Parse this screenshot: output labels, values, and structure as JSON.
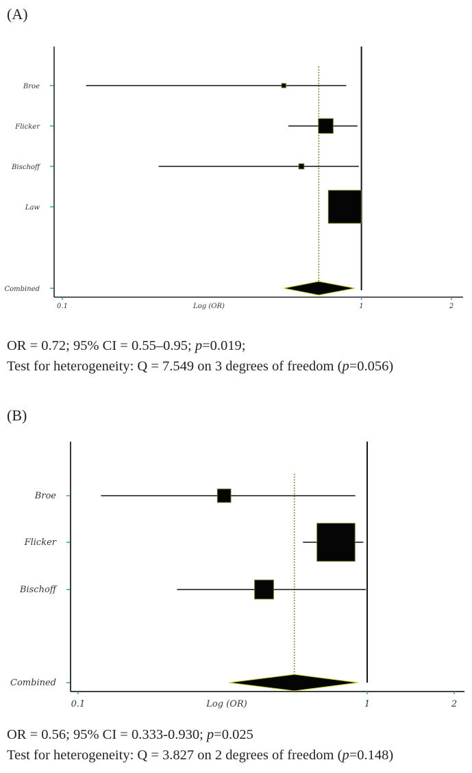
{
  "panels": [
    {
      "label": "(A)",
      "xlabel": "Log (OR)",
      "ticks": [
        {
          "value": 0.1,
          "label": "0.1"
        },
        {
          "value": 1,
          "label": "1"
        },
        {
          "value": 2,
          "label": "2"
        }
      ],
      "stats_line1_pre": "OR = 0.72; 95% CI = 0.55–0.95; ",
      "stats_line1_p": "p",
      "stats_line1_post": "=0.019;",
      "stats_line2_pre": "Test for heterogeneity: Q = 7.549 on 3 degrees of freedom (",
      "stats_line2_p": "p",
      "stats_line2_post": "=0.056)"
    },
    {
      "label": "(B)",
      "xlabel": "Log (OR)",
      "ticks": [
        {
          "value": 0.1,
          "label": "0.1"
        },
        {
          "value": 1,
          "label": "1"
        },
        {
          "value": 2,
          "label": "2"
        }
      ],
      "stats_line1_pre": "OR = 0.56; 95% CI = 0.333-0.930; ",
      "stats_line1_p": "p",
      "stats_line1_post": "=0.025",
      "stats_line2_pre": "Test for heterogeneity: Q = 3.827 on 2 degrees of freedom (",
      "stats_line2_p": "p",
      "stats_line2_post": "=0.148)"
    }
  ],
  "chart_data": [
    {
      "type": "forest",
      "xlabel": "Log (OR)",
      "xscale": "log",
      "xlim": [
        0.1,
        2
      ],
      "null_line": 1,
      "pooled_line": 0.72,
      "studies": [
        {
          "name": "Broe",
          "or": 0.55,
          "lo": 0.12,
          "hi": 0.89,
          "weight": 0.01
        },
        {
          "name": "Flicker",
          "or": 0.76,
          "lo": 0.57,
          "hi": 0.97,
          "weight": 0.12
        },
        {
          "name": "Bischoff",
          "or": 0.63,
          "lo": 0.21,
          "hi": 0.98,
          "weight": 0.015
        },
        {
          "name": "Law",
          "or": 0.88,
          "lo": 0.8,
          "hi": 0.99,
          "weight": 0.6
        }
      ],
      "combined": {
        "name": "Combined",
        "or": 0.72,
        "lo": 0.55,
        "hi": 0.95
      }
    },
    {
      "type": "forest",
      "xlabel": "Log (OR)",
      "xscale": "log",
      "xlim": [
        0.1,
        2
      ],
      "null_line": 1,
      "pooled_line": 0.56,
      "studies": [
        {
          "name": "Broe",
          "or": 0.32,
          "lo": 0.12,
          "hi": 0.91,
          "weight": 0.1
        },
        {
          "name": "Flicker",
          "or": 0.78,
          "lo": 0.6,
          "hi": 0.97,
          "weight": 0.8
        },
        {
          "name": "Bischoff",
          "or": 0.44,
          "lo": 0.22,
          "hi": 0.99,
          "weight": 0.2
        }
      ],
      "combined": {
        "name": "Combined",
        "or": 0.56,
        "lo": 0.333,
        "hi": 0.93
      }
    }
  ]
}
